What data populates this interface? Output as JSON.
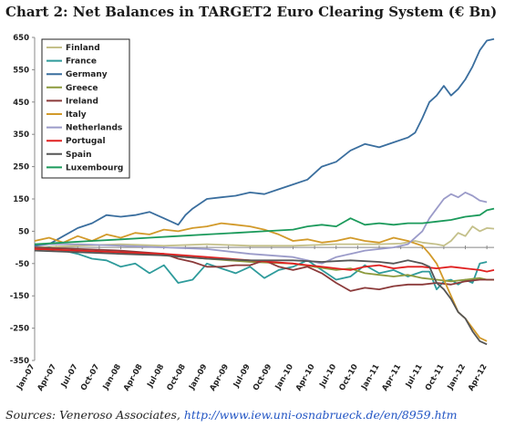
{
  "title": "Chart 2:  Net Balances in TARGET2 Euro Clearing System (€ Bn)",
  "source": {
    "prefix": "Sources: Veneroso Associates, ",
    "link": "http://www.iew.uni-osnabrueck.de/en/8959.htm"
  },
  "chart_data": {
    "type": "line",
    "title": "",
    "xlabel": "",
    "ylabel": "",
    "ylim": [
      -350,
      650
    ],
    "yticks": [
      650,
      550,
      450,
      350,
      250,
      150,
      50,
      -50,
      -150,
      -250,
      -350
    ],
    "xlim": [
      0,
      64
    ],
    "xticks": [
      "Jan-07",
      "Apr-07",
      "Jul-07",
      "Oct-07",
      "Jan-08",
      "Apr-08",
      "Jul-08",
      "Oct-08",
      "Jan-09",
      "Apr-09",
      "Jul-09",
      "Oct-09",
      "Jan-10",
      "Apr-10",
      "Jul-10",
      "Oct-10",
      "Jan-11",
      "Apr-11",
      "Jul-11",
      "Oct-11",
      "Jan-12",
      "Apr-12"
    ],
    "x_unit": "months since Jan-07",
    "grid": false,
    "legend_position": "top-left",
    "series": [
      {
        "name": "Finland",
        "color": "#c4c08a",
        "x": [
          0,
          6,
          12,
          18,
          24,
          30,
          36,
          42,
          48,
          51,
          53,
          54,
          56,
          57,
          58,
          59,
          60,
          61,
          62,
          63,
          64
        ],
        "values": [
          0,
          5,
          10,
          5,
          10,
          5,
          5,
          10,
          10,
          12,
          20,
          15,
          10,
          5,
          20,
          45,
          35,
          65,
          50,
          60,
          58
        ]
      },
      {
        "name": "France",
        "color": "#2e9b9b",
        "x": [
          0,
          2,
          4,
          6,
          8,
          10,
          12,
          14,
          16,
          18,
          20,
          22,
          24,
          26,
          28,
          30,
          32,
          34,
          36,
          38,
          40,
          42,
          44,
          46,
          48,
          50,
          52,
          54,
          55,
          56,
          57,
          58,
          59,
          60,
          61,
          62,
          63
        ],
        "values": [
          -5,
          0,
          -10,
          -20,
          -35,
          -40,
          -60,
          -50,
          -80,
          -55,
          -110,
          -100,
          -50,
          -65,
          -80,
          -60,
          -95,
          -70,
          -60,
          -40,
          -70,
          -100,
          -90,
          -55,
          -80,
          -70,
          -90,
          -75,
          -75,
          -130,
          -105,
          -100,
          -115,
          -100,
          -110,
          -50,
          -45
        ]
      },
      {
        "name": "Germany",
        "color": "#3a6e9e",
        "x": [
          0,
          2,
          4,
          6,
          8,
          10,
          12,
          14,
          16,
          18,
          20,
          21,
          22,
          24,
          26,
          28,
          30,
          32,
          34,
          36,
          38,
          40,
          42,
          44,
          46,
          48,
          50,
          52,
          53,
          54,
          55,
          56,
          57,
          58,
          59,
          60,
          61,
          62,
          63,
          64
        ],
        "values": [
          5,
          10,
          35,
          60,
          75,
          100,
          95,
          100,
          110,
          90,
          70,
          100,
          120,
          150,
          155,
          160,
          170,
          165,
          180,
          195,
          210,
          250,
          265,
          300,
          320,
          310,
          325,
          340,
          355,
          400,
          450,
          470,
          500,
          470,
          490,
          520,
          560,
          610,
          640,
          645
        ]
      },
      {
        "name": "Greece",
        "color": "#8c9a3d",
        "x": [
          0,
          6,
          12,
          18,
          24,
          30,
          36,
          42,
          44,
          46,
          48,
          50,
          52,
          54,
          56,
          58,
          60,
          62,
          63,
          64
        ],
        "values": [
          -5,
          -10,
          -15,
          -25,
          -35,
          -45,
          -50,
          -70,
          -65,
          -80,
          -85,
          -90,
          -85,
          -95,
          -100,
          -105,
          -100,
          -95,
          -100,
          -100
        ]
      },
      {
        "name": "Ireland",
        "color": "#8b3a3a",
        "x": [
          0,
          6,
          12,
          18,
          20,
          22,
          24,
          26,
          28,
          30,
          32,
          34,
          36,
          38,
          40,
          42,
          44,
          46,
          48,
          50,
          52,
          54,
          56,
          58,
          60,
          62,
          64
        ],
        "values": [
          0,
          -5,
          -10,
          -20,
          -35,
          -45,
          -60,
          -60,
          -55,
          -55,
          -40,
          -60,
          -70,
          -60,
          -80,
          -110,
          -135,
          -125,
          -130,
          -120,
          -115,
          -115,
          -110,
          -115,
          -105,
          -100,
          -100
        ]
      },
      {
        "name": "Italy",
        "color": "#d29a2a",
        "x": [
          0,
          2,
          4,
          6,
          8,
          10,
          12,
          14,
          16,
          18,
          20,
          22,
          24,
          26,
          28,
          30,
          32,
          34,
          36,
          38,
          40,
          42,
          44,
          46,
          48,
          50,
          52,
          54,
          55,
          56,
          57,
          58,
          59,
          60,
          61,
          62,
          63
        ],
        "values": [
          20,
          30,
          15,
          35,
          20,
          40,
          30,
          45,
          40,
          55,
          50,
          60,
          65,
          75,
          70,
          65,
          55,
          40,
          20,
          25,
          15,
          20,
          30,
          20,
          15,
          30,
          20,
          5,
          -20,
          -50,
          -100,
          -150,
          -200,
          -220,
          -250,
          -280,
          -290
        ]
      },
      {
        "name": "Netherlands",
        "color": "#9b9bc9",
        "x": [
          0,
          6,
          12,
          18,
          24,
          30,
          36,
          38,
          40,
          42,
          44,
          46,
          48,
          50,
          52,
          54,
          55,
          56,
          57,
          58,
          59,
          60,
          61,
          62,
          63
        ],
        "values": [
          10,
          10,
          5,
          0,
          -5,
          -20,
          -30,
          -40,
          -50,
          -30,
          -20,
          -10,
          -5,
          0,
          10,
          50,
          90,
          120,
          150,
          165,
          155,
          170,
          160,
          145,
          140
        ]
      },
      {
        "name": "Portugal",
        "color": "#e02020",
        "x": [
          0,
          6,
          12,
          18,
          24,
          30,
          36,
          38,
          40,
          42,
          44,
          46,
          48,
          50,
          52,
          54,
          56,
          58,
          60,
          62,
          63,
          64
        ],
        "values": [
          -5,
          -10,
          -15,
          -20,
          -30,
          -40,
          -50,
          -55,
          -60,
          -65,
          -70,
          -60,
          -55,
          -65,
          -60,
          -60,
          -65,
          -60,
          -65,
          -70,
          -75,
          -70
        ]
      },
      {
        "name": "Spain",
        "color": "#555555",
        "x": [
          0,
          6,
          12,
          18,
          24,
          30,
          36,
          40,
          44,
          48,
          50,
          52,
          54,
          55,
          56,
          57,
          58,
          59,
          60,
          61,
          62,
          63
        ],
        "values": [
          -10,
          -15,
          -20,
          -25,
          -35,
          -40,
          -40,
          -45,
          -40,
          -45,
          -50,
          -40,
          -50,
          -60,
          -110,
          -130,
          -160,
          -200,
          -220,
          -260,
          -290,
          -300
        ]
      },
      {
        "name": "Luxembourg",
        "color": "#1b9a5b",
        "x": [
          0,
          4,
          8,
          12,
          16,
          20,
          24,
          28,
          32,
          36,
          38,
          40,
          42,
          44,
          46,
          48,
          50,
          52,
          54,
          56,
          58,
          60,
          62,
          63,
          64
        ],
        "values": [
          10,
          15,
          20,
          25,
          30,
          35,
          40,
          45,
          50,
          55,
          65,
          70,
          65,
          90,
          70,
          75,
          70,
          75,
          75,
          80,
          85,
          95,
          100,
          115,
          120
        ]
      }
    ]
  }
}
